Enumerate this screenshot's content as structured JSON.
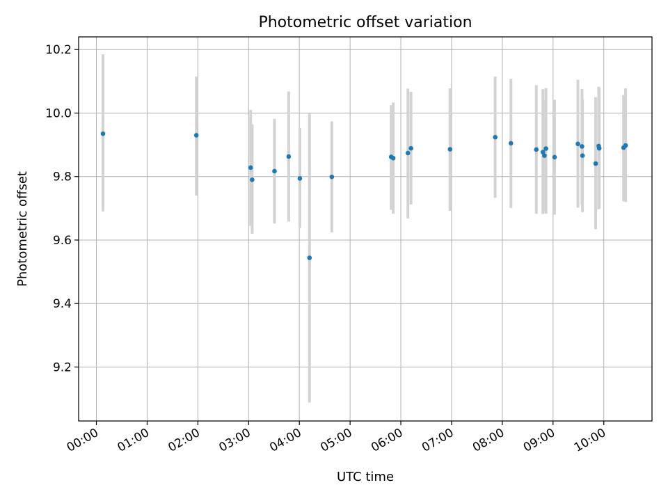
{
  "chart_data": {
    "type": "scatter",
    "title": "Photometric offset variation",
    "xlabel": "UTC time",
    "ylabel": "Photometric offset",
    "x_unit": "hours",
    "xlim": [
      -0.35,
      10.95
    ],
    "ylim": [
      9.03,
      10.24
    ],
    "grid": true,
    "x_ticks": [
      {
        "value": 0,
        "label": "00:00"
      },
      {
        "value": 1,
        "label": "01:00"
      },
      {
        "value": 2,
        "label": "02:00"
      },
      {
        "value": 3,
        "label": "03:00"
      },
      {
        "value": 4,
        "label": "04:00"
      },
      {
        "value": 5,
        "label": "05:00"
      },
      {
        "value": 6,
        "label": "06:00"
      },
      {
        "value": 7,
        "label": "07:00"
      },
      {
        "value": 8,
        "label": "08:00"
      },
      {
        "value": 9,
        "label": "09:00"
      },
      {
        "value": 10,
        "label": "10:00"
      }
    ],
    "y_ticks": [
      {
        "value": 9.2,
        "label": "9.2"
      },
      {
        "value": 9.4,
        "label": "9.4"
      },
      {
        "value": 9.6,
        "label": "9.6"
      },
      {
        "value": 9.8,
        "label": "9.8"
      },
      {
        "value": 10.0,
        "label": "10.0"
      },
      {
        "value": 10.2,
        "label": "10.2"
      }
    ],
    "colors": {
      "point": "#1f77b4",
      "errorbar": "#d3d3d3",
      "grid": "#b0b0b0",
      "axes": "#000000"
    },
    "points": [
      {
        "x": 0.13,
        "y": 9.935,
        "ylow": 9.69,
        "yhigh": 10.185
      },
      {
        "x": 1.97,
        "y": 9.93,
        "ylow": 9.74,
        "yhigh": 10.115
      },
      {
        "x": 3.04,
        "y": 9.828,
        "ylow": 9.645,
        "yhigh": 10.01
      },
      {
        "x": 3.07,
        "y": 9.79,
        "ylow": 9.62,
        "yhigh": 9.965
      },
      {
        "x": 3.51,
        "y": 9.817,
        "ylow": 9.652,
        "yhigh": 9.982
      },
      {
        "x": 3.79,
        "y": 9.863,
        "ylow": 9.658,
        "yhigh": 10.068
      },
      {
        "x": 4.01,
        "y": 9.794,
        "ylow": 9.638,
        "yhigh": 9.953
      },
      {
        "x": 4.2,
        "y": 9.544,
        "ylow": 9.088,
        "yhigh": 9.998
      },
      {
        "x": 4.64,
        "y": 9.799,
        "ylow": 9.624,
        "yhigh": 9.974
      },
      {
        "x": 5.81,
        "y": 9.862,
        "ylow": 9.695,
        "yhigh": 10.025
      },
      {
        "x": 5.85,
        "y": 9.858,
        "ylow": 9.683,
        "yhigh": 10.033
      },
      {
        "x": 6.14,
        "y": 9.874,
        "ylow": 9.668,
        "yhigh": 10.077
      },
      {
        "x": 6.2,
        "y": 9.889,
        "ylow": 9.712,
        "yhigh": 10.067
      },
      {
        "x": 6.97,
        "y": 9.886,
        "ylow": 9.692,
        "yhigh": 10.078
      },
      {
        "x": 7.86,
        "y": 9.924,
        "ylow": 9.733,
        "yhigh": 10.115
      },
      {
        "x": 8.17,
        "y": 9.905,
        "ylow": 9.701,
        "yhigh": 10.108
      },
      {
        "x": 8.67,
        "y": 9.885,
        "ylow": 9.683,
        "yhigh": 10.088
      },
      {
        "x": 8.8,
        "y": 9.877,
        "ylow": 9.682,
        "yhigh": 10.075
      },
      {
        "x": 8.86,
        "y": 9.888,
        "ylow": 9.683,
        "yhigh": 10.079
      },
      {
        "x": 8.83,
        "y": 9.866,
        "ylow": 9.69,
        "yhigh": 10.04
      },
      {
        "x": 9.03,
        "y": 9.861,
        "ylow": 9.68,
        "yhigh": 10.042
      },
      {
        "x": 9.49,
        "y": 9.903,
        "ylow": 9.702,
        "yhigh": 10.105
      },
      {
        "x": 9.57,
        "y": 9.895,
        "ylow": 9.712,
        "yhigh": 10.076
      },
      {
        "x": 9.58,
        "y": 9.866,
        "ylow": 9.688,
        "yhigh": 10.044
      },
      {
        "x": 9.84,
        "y": 9.841,
        "ylow": 9.634,
        "yhigh": 10.05
      },
      {
        "x": 9.9,
        "y": 9.896,
        "ylow": 9.697,
        "yhigh": 10.083
      },
      {
        "x": 9.91,
        "y": 9.889,
        "ylow": 9.7,
        "yhigh": 10.08
      },
      {
        "x": 10.39,
        "y": 9.891,
        "ylow": 9.722,
        "yhigh": 10.057
      },
      {
        "x": 10.43,
        "y": 9.898,
        "ylow": 9.72,
        "yhigh": 10.078
      }
    ]
  }
}
